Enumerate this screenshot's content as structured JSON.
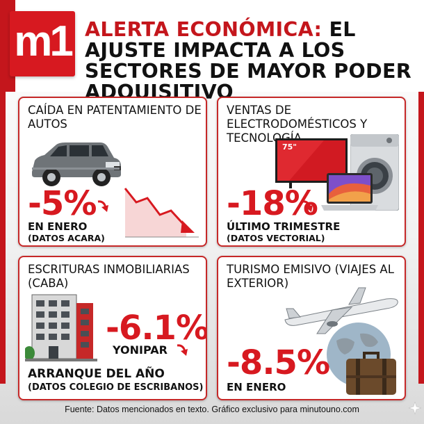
{
  "brand": {
    "logo_text": "m1"
  },
  "headline": {
    "highlight": "ALERTA ECONÓMICA:",
    "rest": "EL AJUSTE IMPACTA A LOS SECTORES DE MAYOR PODER ADQUISITIVO"
  },
  "cards": [
    {
      "title": "CAÍDA EN PATENTAMIENTO DE AUTOS",
      "value": "-5%",
      "label": "EN ENERO",
      "source": "(DATOS ACARA)"
    },
    {
      "title": "VENTAS DE ELECTRODOMÉSTICOS Y TECNOLOGÍA",
      "value": "-18%",
      "label": "ÚLTIMO TRIMESTRE",
      "source": "(DATOS VECTORIAL)",
      "tv_label": "75\""
    },
    {
      "title": "ESCRITURAS INMOBILIARIAS (CABA)",
      "value": "-6.1%",
      "extra": "YONIPAR",
      "label": "ARRANQUE DEL AÑO",
      "source": "(DATOS COLEGIO DE ESCRIBANOS)"
    },
    {
      "title": "TURISMO EMISIVO (VIAJES AL EXTERIOR)",
      "value": "-8.5%",
      "label": "EN ENERO"
    }
  ],
  "footer": "Fuente: Datos mencionados en texto. Gráfico exclusivo para minutouno.com",
  "colors": {
    "accent": "#c4161c",
    "value_red": "#d71920"
  },
  "icons": [
    "car-icon",
    "declining-chart-icon",
    "tv-icon",
    "washing-machine-icon",
    "laptop-icon",
    "building-icon",
    "airplane-icon",
    "globe-icon",
    "suitcase-icon",
    "down-arrow-icon",
    "sparkle-icon"
  ]
}
